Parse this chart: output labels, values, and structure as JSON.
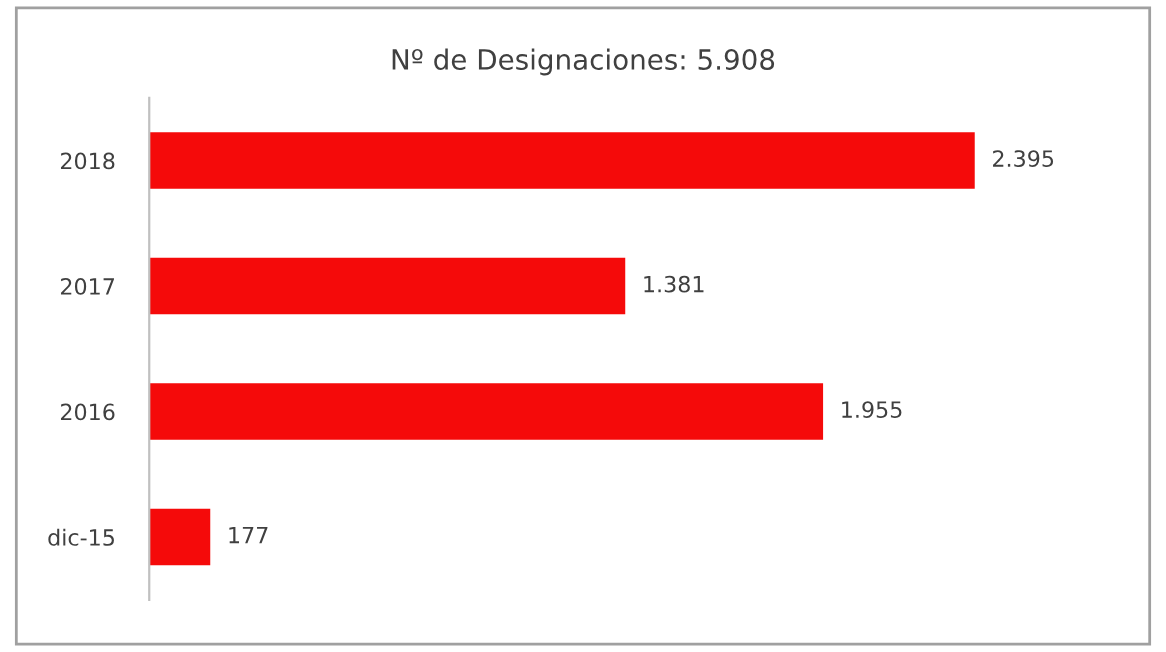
{
  "chart_data": {
    "type": "bar",
    "orientation": "horizontal",
    "title": "Nº de Designaciones: 5.908",
    "categories": [
      "2018",
      "2017",
      "2016",
      "dic-15"
    ],
    "values": [
      2395,
      1381,
      1955,
      177
    ],
    "value_labels": [
      "2.395",
      "1.381",
      "1.955",
      "177"
    ],
    "color": "#f50a0a",
    "tick_labels": "y",
    "grid": false,
    "legend": false
  }
}
